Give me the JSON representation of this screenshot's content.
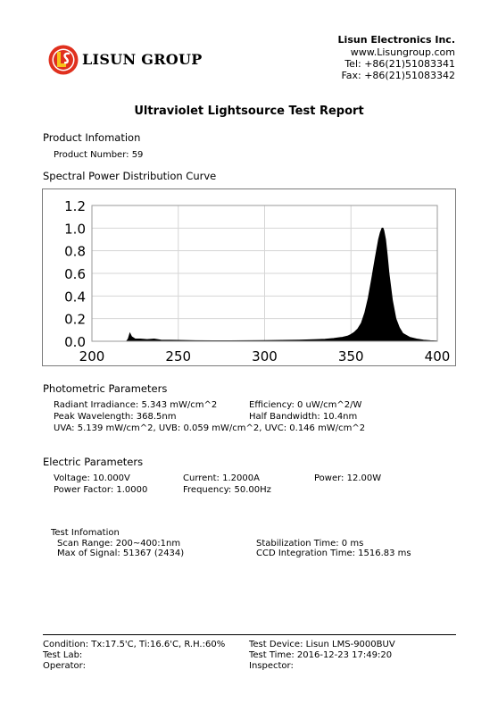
{
  "header": {
    "brand": "LISUN GROUP",
    "company": "Lisun Electronics Inc.",
    "website": "www.Lisungroup.com",
    "tel": "Tel: +86(21)51083341",
    "fax": "Fax: +86(21)51083342",
    "colors": {
      "logo_red": "#e0301e",
      "logo_yellow": "#f7c21a"
    }
  },
  "title": "Ultraviolet Lightsource Test Report",
  "product": {
    "heading": "Product Infomation",
    "number_label": "Product Number: 59"
  },
  "spd": {
    "heading": "Spectral Power Distribution Curve"
  },
  "chart_data": {
    "type": "area",
    "xlim": [
      200,
      400
    ],
    "ylim": [
      0,
      1.2
    ],
    "x_ticks": [
      "200",
      "250",
      "300",
      "350",
      "400"
    ],
    "y_ticks": [
      "0.0",
      "0.2",
      "0.4",
      "0.6",
      "0.8",
      "1.0",
      "1.2"
    ],
    "grid": true,
    "fill_color": "#000000",
    "x": [
      200,
      220,
      221,
      222,
      223,
      225,
      228,
      232,
      236,
      240,
      250,
      260,
      270,
      280,
      290,
      300,
      310,
      320,
      330,
      335,
      340,
      345,
      348,
      350,
      352,
      354,
      356,
      358,
      360,
      362,
      364,
      366,
      367,
      368,
      368.5,
      369,
      370,
      371,
      372,
      374,
      376,
      378,
      380,
      384,
      388,
      392,
      396,
      400
    ],
    "y": [
      0,
      0,
      0.02,
      0.07,
      0.04,
      0.02,
      0.02,
      0.015,
      0.02,
      0.01,
      0.008,
      0.005,
      0.004,
      0.004,
      0.005,
      0.006,
      0.008,
      0.01,
      0.015,
      0.018,
      0.025,
      0.035,
      0.045,
      0.06,
      0.08,
      0.11,
      0.16,
      0.25,
      0.38,
      0.55,
      0.73,
      0.9,
      0.96,
      1.0,
      1.0,
      0.98,
      0.9,
      0.76,
      0.6,
      0.36,
      0.2,
      0.12,
      0.07,
      0.035,
      0.02,
      0.01,
      0.005,
      0.002
    ]
  },
  "photometric": {
    "heading": "Photometric Parameters",
    "radiant": "Radiant Irradiance: 5.343 mW/cm^2",
    "efficiency": "Efficiency: 0 uW/cm^2/W",
    "peak": "Peak Wavelength: 368.5nm",
    "half_bw": "Half Bandwidth: 10.4nm",
    "uv": "UVA: 5.139 mW/cm^2,  UVB: 0.059 mW/cm^2, UVC: 0.146 mW/cm^2"
  },
  "electric": {
    "heading": "Electric Parameters",
    "voltage": "Voltage: 10.000V",
    "current": "Current: 1.2000A",
    "power": "Power: 12.00W",
    "pf": "Power Factor: 1.0000",
    "freq": "Frequency: 50.00Hz"
  },
  "test": {
    "heading": "Test Infomation",
    "scan": "Scan Range: 200~400:1nm",
    "stab": "Stabilization Time: 0 ms",
    "max": "Max of Signal: 51367 (2434)",
    "ccd": "CCD Integration Time: 1516.83 ms"
  },
  "footer": {
    "condition": "Condition: Tx:17.5'C, Ti:16.6'C, R.H.:60%",
    "device": "Test Device: Lisun LMS-9000BUV",
    "lab": "Test Lab:",
    "time": "Test Time: 2016-12-23 17:49:20",
    "operator": "Operator:",
    "inspector": "Inspector:"
  }
}
